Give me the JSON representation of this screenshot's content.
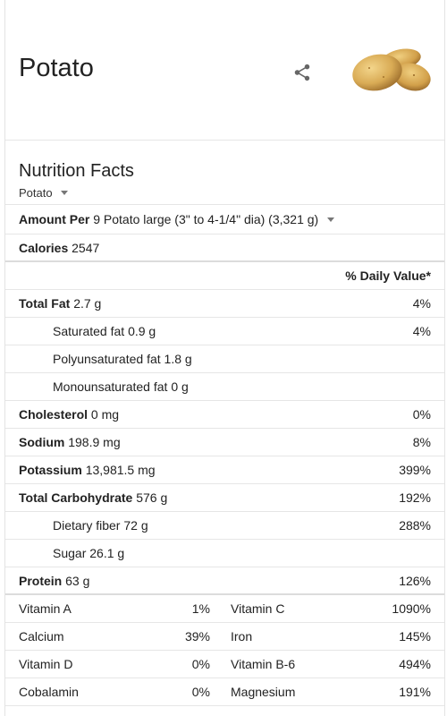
{
  "header": {
    "title": "Potato"
  },
  "nutrition": {
    "heading": "Nutrition Facts",
    "food_selector": "Potato",
    "amount_per_label": "Amount Per",
    "amount_per_value": "9 Potato large (3\" to 4-1/4\" dia) (3,321 g)",
    "calories_label": "Calories",
    "calories_value": "2547",
    "daily_value_header": "% Daily Value*",
    "rows": [
      {
        "label": "Total Fat",
        "amount": "2.7 g",
        "dv": "4%"
      },
      {
        "label": "Saturated fat",
        "amount": "0.9 g",
        "dv": "4%"
      },
      {
        "label": "Polyunsaturated fat",
        "amount": "1.8 g",
        "dv": ""
      },
      {
        "label": "Monounsaturated fat",
        "amount": "0 g",
        "dv": ""
      },
      {
        "label": "Cholesterol",
        "amount": "0 mg",
        "dv": "0%"
      },
      {
        "label": "Sodium",
        "amount": "198.9 mg",
        "dv": "8%"
      },
      {
        "label": "Potassium",
        "amount": "13,981.5 mg",
        "dv": "399%"
      },
      {
        "label": "Total Carbohydrate",
        "amount": "576 g",
        "dv": "192%"
      },
      {
        "label": "Dietary fiber",
        "amount": "72 g",
        "dv": "288%"
      },
      {
        "label": "Sugar",
        "amount": "26.1 g",
        "dv": ""
      },
      {
        "label": "Protein",
        "amount": "63 g",
        "dv": "126%"
      }
    ],
    "vitamins": [
      {
        "left_name": "Vitamin A",
        "left_pct": "1%",
        "right_name": "Vitamin C",
        "right_pct": "1090%"
      },
      {
        "left_name": "Calcium",
        "left_pct": "39%",
        "right_name": "Iron",
        "right_pct": "145%"
      },
      {
        "left_name": "Vitamin D",
        "left_pct": "0%",
        "right_name": "Vitamin B-6",
        "right_pct": "494%"
      },
      {
        "left_name": "Cobalamin",
        "left_pct": "0%",
        "right_name": "Magnesium",
        "right_pct": "191%"
      }
    ]
  }
}
